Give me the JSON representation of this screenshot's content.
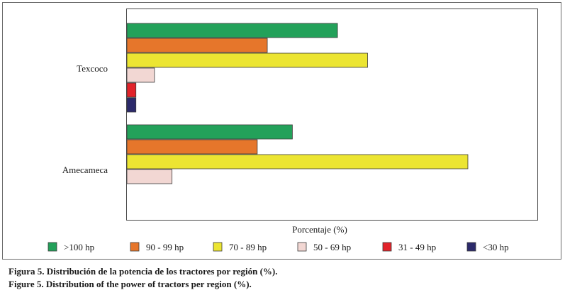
{
  "chart_data": {
    "type": "bar",
    "orientation": "horizontal",
    "categories": [
      "Texcoco",
      "Amecameca"
    ],
    "series": [
      {
        "name": ">100 hp",
        "color": "#23a15a",
        "values": [
          42,
          33
        ]
      },
      {
        "name": "90 - 99 hp",
        "color": "#e6762b",
        "values": [
          28,
          26
        ]
      },
      {
        "name": "70 - 89 hp",
        "color": "#ece532",
        "values": [
          48,
          68
        ]
      },
      {
        "name": "50 - 69 hp",
        "color": "#f2d7d3",
        "values": [
          5.5,
          9
        ]
      },
      {
        "name": "31 - 49 hp",
        "color": "#e2232a",
        "values": [
          1.8,
          0
        ]
      },
      {
        "name": "<30 hp",
        "color": "#2c2a6b",
        "values": [
          1.8,
          0
        ]
      }
    ],
    "xlabel": "Porcentaje (%)",
    "ylabel": "",
    "xlim": [
      0,
      82
    ],
    "grid": false,
    "legend": "bottom"
  },
  "captions": [
    "Figura 5. Distribución de la potencia de los tractores por región (%).",
    "Figure 5. Distribution of the power of tractors per region (%)."
  ]
}
